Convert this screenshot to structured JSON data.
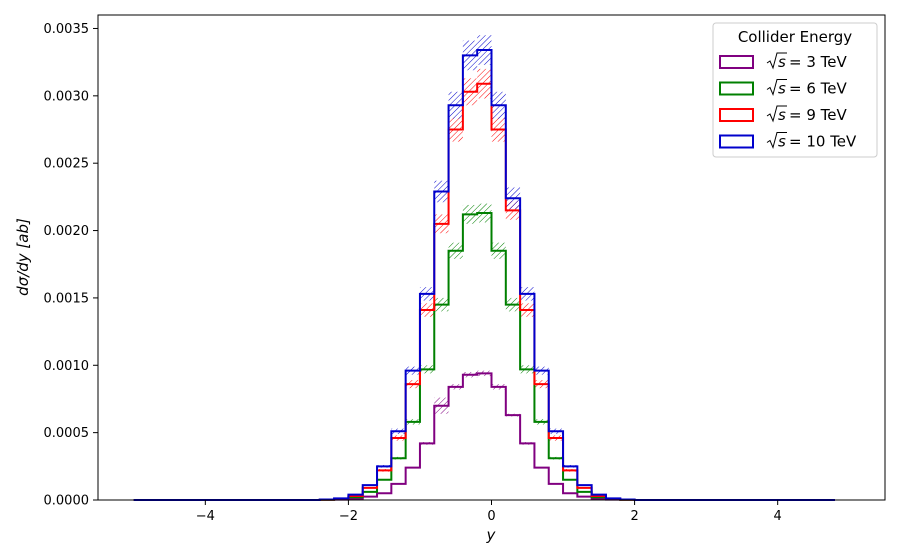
{
  "chart_data": {
    "type": "step",
    "xlabel": "y",
    "ylabel": "dσ/dy [ab]",
    "xlim": [
      -5.5,
      5.5
    ],
    "ylim": [
      0,
      0.0036
    ],
    "xticks": [
      -4,
      -2,
      0,
      2,
      4
    ],
    "xtick_labels": [
      "−4",
      "−2",
      "0",
      "2",
      "4"
    ],
    "yticks": [
      0,
      0.0005,
      0.001,
      0.0015,
      0.002,
      0.0025,
      0.003,
      0.0035
    ],
    "ytick_labels": [
      "0.0000",
      "0.0005",
      "0.0010",
      "0.0015",
      "0.0020",
      "0.0025",
      "0.0030",
      "0.0035"
    ],
    "grid": false,
    "bin_edges": [
      -5.0,
      -4.8,
      -4.6,
      -4.4,
      -4.2,
      -4.0,
      -3.8,
      -3.6,
      -3.4,
      -3.2,
      -3.0,
      -2.8,
      -2.6,
      -2.4,
      -2.2,
      -2.0,
      -1.8,
      -1.6,
      -1.4,
      -1.2,
      -1.0,
      -0.8,
      -0.6,
      -0.4,
      -0.2,
      0.0,
      0.2,
      0.4,
      0.6,
      0.8,
      1.0,
      1.2,
      1.4,
      1.6,
      1.8,
      2.0,
      2.2,
      2.4,
      2.6,
      2.8,
      3.0,
      3.2,
      3.4,
      3.6,
      3.8,
      4.0,
      4.2,
      4.4,
      4.6,
      4.8
    ],
    "legend": {
      "title": "Collider Energy",
      "position": "top-right"
    },
    "series": [
      {
        "name": "√s = 3 TeV",
        "label_parts": {
          "root": "s",
          "rest": " = 3 TeV"
        },
        "color": "#800080",
        "values": [
          0,
          0,
          0,
          0,
          0,
          0,
          0,
          0,
          0,
          0,
          0,
          0,
          0,
          1e-06,
          3e-06,
          1e-05,
          2.5e-05,
          5e-05,
          0.00012,
          0.00024,
          0.00042,
          0.0007,
          0.00084,
          0.00093,
          0.00094,
          0.00084,
          0.00063,
          0.00042,
          0.00024,
          0.00012,
          5e-05,
          2.5e-05,
          1e-05,
          3e-06,
          1e-06,
          0,
          0,
          0,
          0,
          0,
          0,
          0,
          0,
          0,
          0,
          0,
          0,
          0,
          0
        ],
        "errors": [
          0,
          0,
          0,
          0,
          0,
          0,
          0,
          0,
          0,
          0,
          0,
          0,
          0,
          0,
          0,
          0,
          0,
          0,
          0,
          0,
          1e-05,
          6e-05,
          2e-05,
          2e-05,
          2e-05,
          2e-05,
          1e-05,
          1e-05,
          0,
          0,
          0,
          0,
          0,
          0,
          0,
          0,
          0,
          0,
          0,
          0,
          0,
          0,
          0,
          0,
          0,
          0,
          0,
          0,
          0
        ]
      },
      {
        "name": "√s = 6 TeV",
        "label_parts": {
          "root": "s",
          "rest": " = 6 TeV"
        },
        "color": "#008000",
        "values": [
          0,
          0,
          0,
          0,
          0,
          0,
          0,
          0,
          0,
          0,
          0,
          0,
          0,
          2e-06,
          6e-06,
          2e-05,
          6e-05,
          0.00015,
          0.00031,
          0.00058,
          0.00097,
          0.00145,
          0.00185,
          0.00212,
          0.00213,
          0.00185,
          0.00145,
          0.00097,
          0.00058,
          0.00031,
          0.00015,
          6e-05,
          2e-05,
          6e-06,
          2e-06,
          0,
          0,
          0,
          0,
          0,
          0,
          0,
          0,
          0,
          0,
          0,
          0,
          0,
          0
        ],
        "errors": [
          0,
          0,
          0,
          0,
          0,
          0,
          0,
          0,
          0,
          0,
          0,
          0,
          0,
          0,
          0,
          0,
          0,
          0,
          1e-05,
          2e-05,
          3e-05,
          5e-05,
          6e-05,
          7e-05,
          7e-05,
          6e-05,
          5e-05,
          3e-05,
          2e-05,
          1e-05,
          0,
          0,
          0,
          0,
          0,
          0,
          0,
          0,
          0,
          0,
          0,
          0,
          0,
          0,
          0,
          0,
          0,
          0,
          0
        ]
      },
      {
        "name": "√s = 9 TeV",
        "label_parts": {
          "root": "s",
          "rest": " = 9 TeV"
        },
        "color": "#ff0000",
        "values": [
          0,
          0,
          0,
          0,
          0,
          0,
          0,
          0,
          0,
          0,
          0,
          0,
          0,
          3e-06,
          1e-05,
          3e-05,
          9e-05,
          0.00022,
          0.00046,
          0.00086,
          0.00141,
          0.00205,
          0.00275,
          0.00303,
          0.00309,
          0.00275,
          0.00215,
          0.00141,
          0.00086,
          0.00046,
          0.00022,
          9e-05,
          3e-05,
          1e-05,
          3e-06,
          0,
          0,
          0,
          0,
          0,
          0,
          0,
          0,
          0,
          0,
          0,
          0,
          0,
          0
        ],
        "errors": [
          0,
          0,
          0,
          0,
          0,
          0,
          0,
          0,
          0,
          0,
          0,
          0,
          0,
          0,
          0,
          0,
          0,
          1e-05,
          2e-05,
          3e-05,
          5e-05,
          7e-05,
          9e-05,
          0.0001,
          0.00011,
          9e-05,
          7e-05,
          5e-05,
          3e-05,
          2e-05,
          1e-05,
          0,
          0,
          0,
          0,
          0,
          0,
          0,
          0,
          0,
          0,
          0,
          0,
          0,
          0,
          0,
          0,
          0,
          0
        ]
      },
      {
        "name": "√s = 10 TeV",
        "label_parts": {
          "root": "s",
          "rest": " = 10 TeV"
        },
        "color": "#0000cc",
        "values": [
          0,
          0,
          0,
          0,
          0,
          0,
          0,
          0,
          0,
          0,
          0,
          0,
          0,
          4e-06,
          1.2e-05,
          4e-05,
          0.00011,
          0.00025,
          0.00051,
          0.00096,
          0.00153,
          0.00229,
          0.00293,
          0.0033,
          0.00334,
          0.00293,
          0.00224,
          0.00153,
          0.00096,
          0.00051,
          0.00025,
          0.00011,
          4e-05,
          1.2e-05,
          4e-06,
          0,
          0,
          0,
          0,
          0,
          0,
          0,
          0,
          0,
          0,
          0,
          0,
          0,
          0
        ],
        "errors": [
          0,
          0,
          0,
          0,
          0,
          0,
          0,
          0,
          0,
          0,
          0,
          0,
          0,
          0,
          0,
          0,
          0,
          1e-05,
          2e-05,
          3e-05,
          5e-05,
          8e-05,
          0.0001,
          0.00011,
          0.00011,
          0.0001,
          8e-05,
          5e-05,
          3e-05,
          2e-05,
          1e-05,
          0,
          0,
          0,
          0,
          0,
          0,
          0,
          0,
          0,
          0,
          0,
          0,
          0,
          0,
          0,
          0,
          0,
          0
        ]
      }
    ]
  }
}
